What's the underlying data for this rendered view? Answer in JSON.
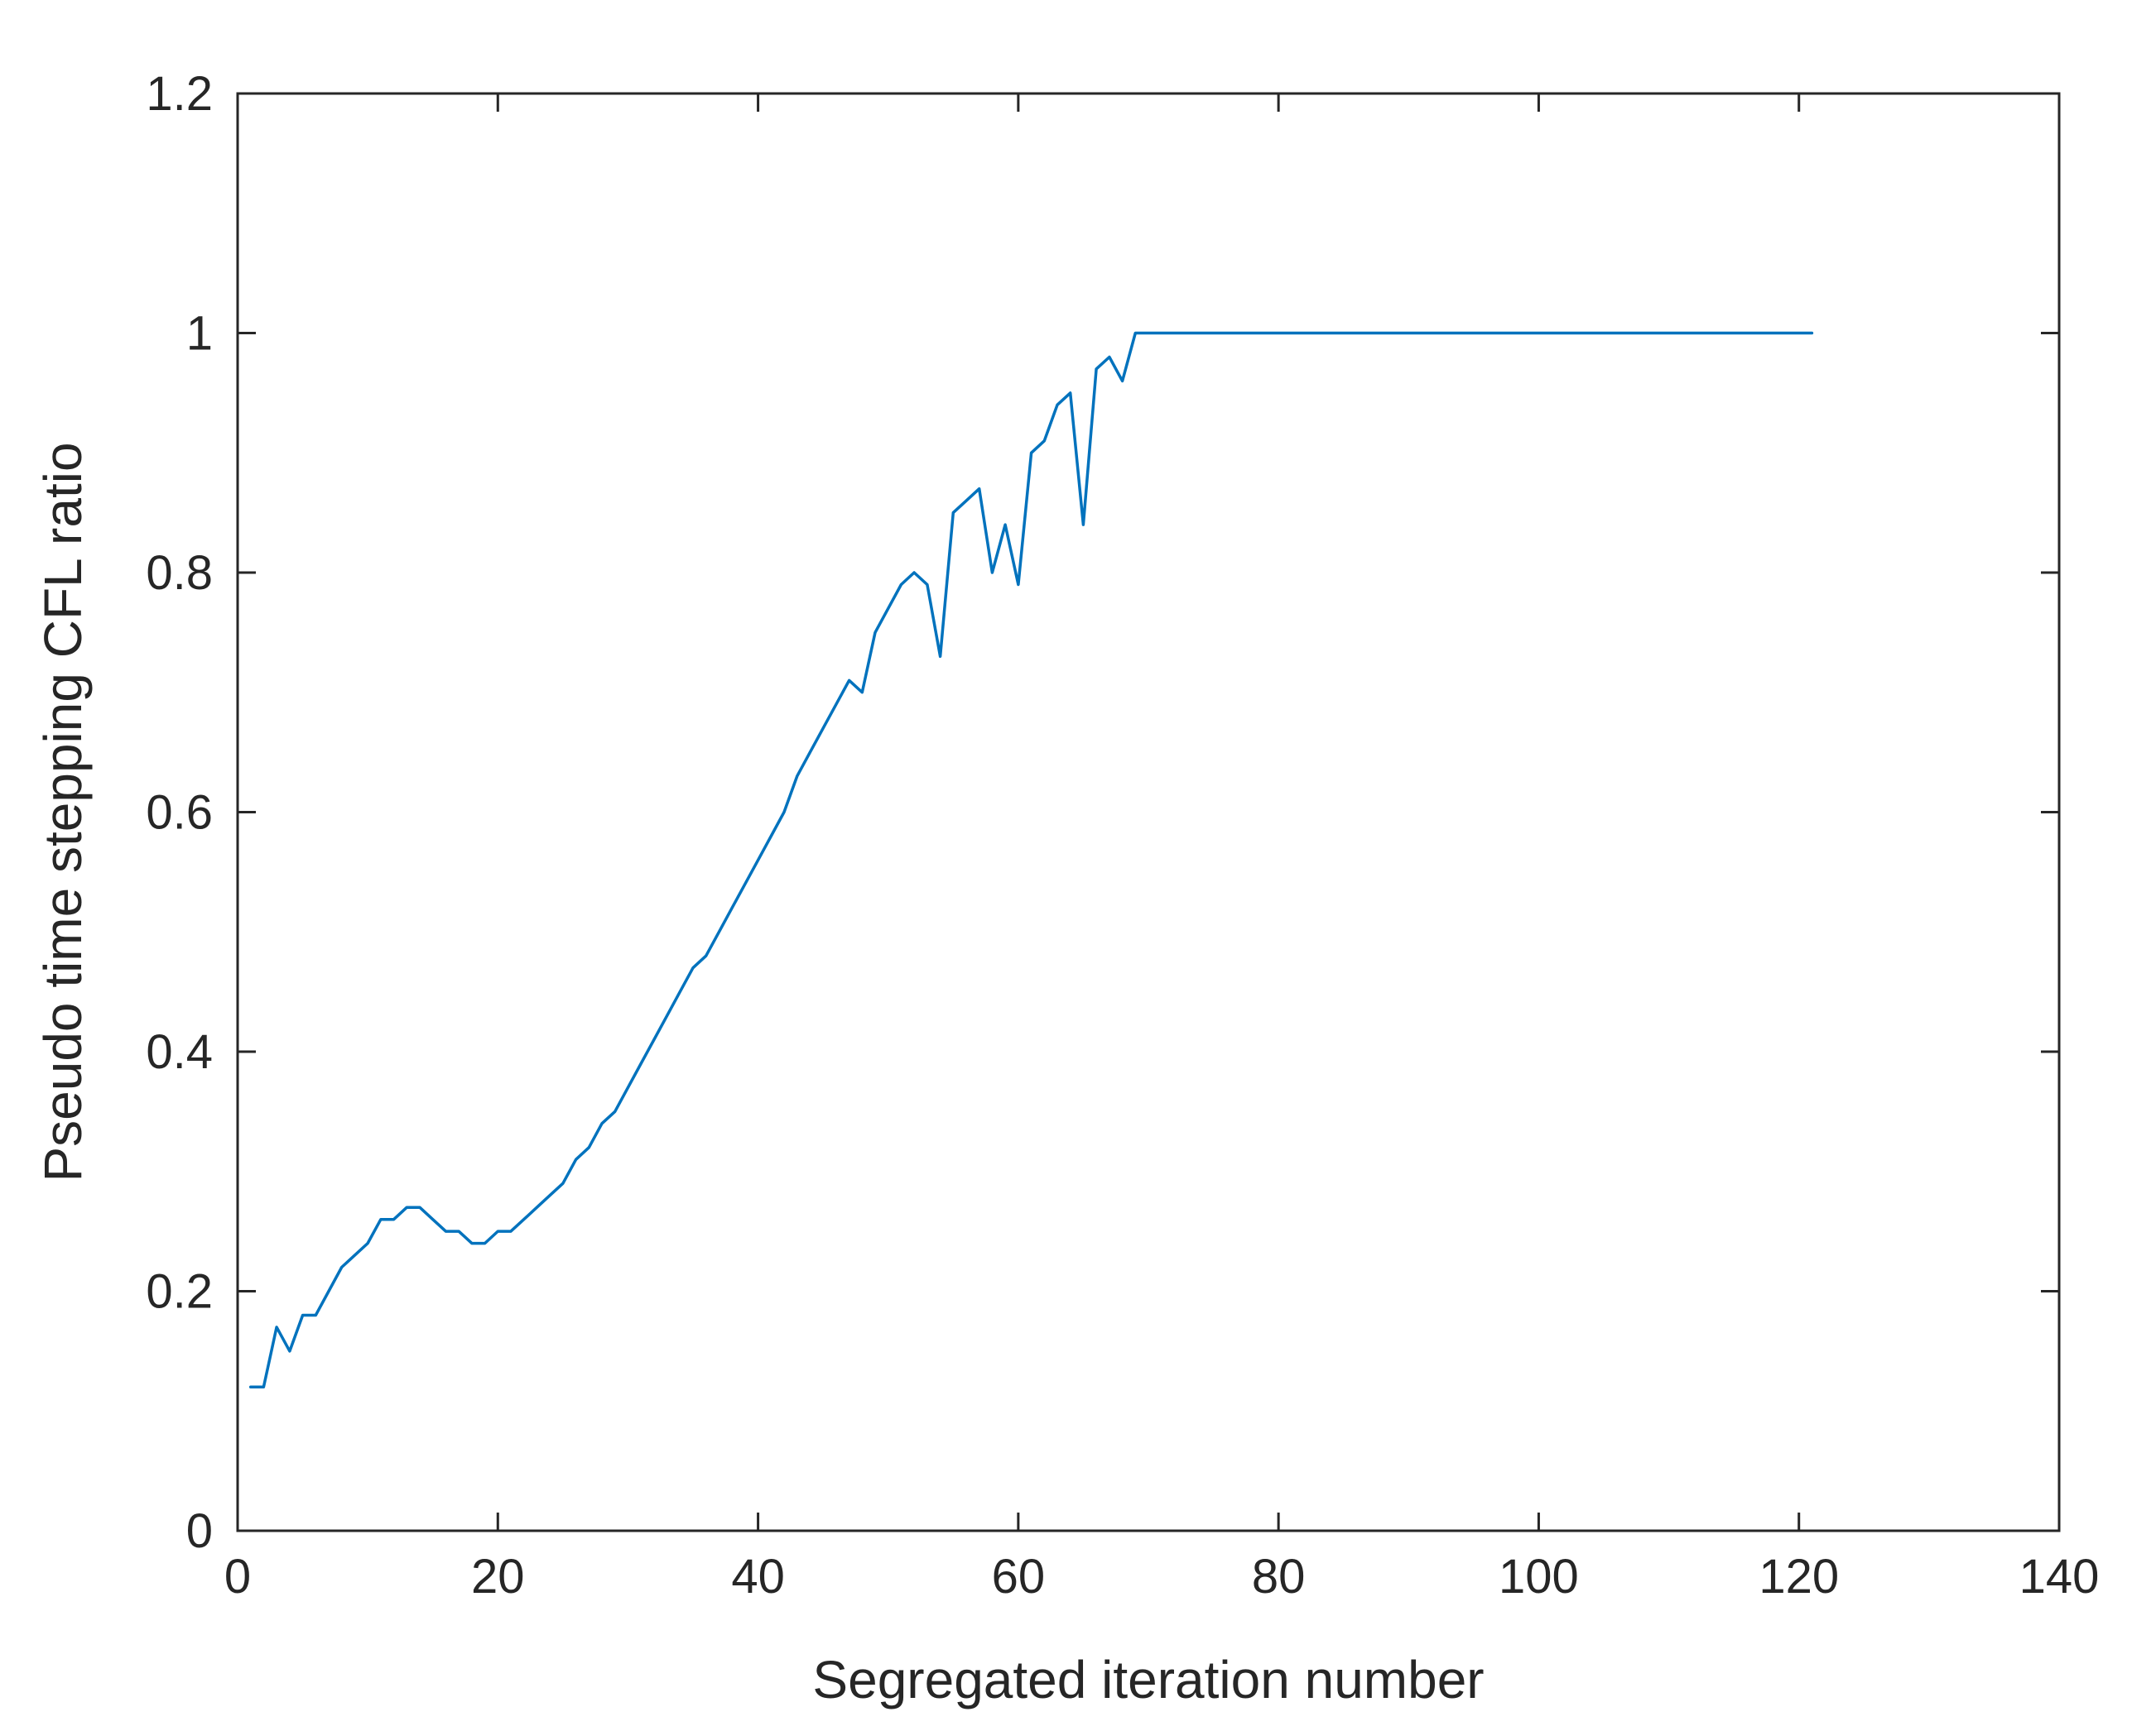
{
  "chart_data": {
    "type": "line",
    "title": "",
    "xlabel": "Segregated iteration number",
    "ylabel": "Pseudo time stepping CFL ratio",
    "xlim": [
      0,
      140
    ],
    "ylim": [
      0,
      1.2
    ],
    "xticks": [
      0,
      20,
      40,
      60,
      80,
      100,
      120,
      140
    ],
    "xtick_labels": [
      "0",
      "20",
      "40",
      "60",
      "80",
      "100",
      "120",
      "140"
    ],
    "yticks": [
      0,
      0.2,
      0.4,
      0.6,
      0.8,
      1.0,
      1.2
    ],
    "ytick_labels": [
      "0",
      "0.2",
      "0.4",
      "0.6",
      "0.8",
      "1",
      "1.2"
    ],
    "grid": false,
    "line_color": "#0072BD",
    "axis_color": "#262626",
    "series": [
      {
        "x": [
          1,
          2,
          3,
          4,
          5,
          6,
          7,
          8,
          9,
          10,
          11,
          12,
          13,
          14,
          15,
          16,
          17,
          18,
          19,
          20,
          21,
          22,
          23,
          24,
          25,
          26,
          27,
          28,
          29,
          30,
          31,
          32,
          33,
          34,
          35,
          36,
          37,
          38,
          39,
          40,
          41,
          42,
          43,
          44,
          45,
          46,
          47,
          48,
          49,
          50,
          51,
          52,
          53,
          54,
          55,
          56,
          57,
          58,
          59,
          60,
          61,
          62,
          63,
          64,
          65,
          66,
          67,
          68,
          69,
          121
        ],
        "y": [
          0.12,
          0.12,
          0.17,
          0.15,
          0.18,
          0.18,
          0.2,
          0.22,
          0.23,
          0.24,
          0.26,
          0.26,
          0.27,
          0.27,
          0.26,
          0.25,
          0.25,
          0.24,
          0.24,
          0.25,
          0.25,
          0.26,
          0.27,
          0.28,
          0.29,
          0.31,
          0.32,
          0.34,
          0.35,
          0.37,
          0.39,
          0.41,
          0.43,
          0.45,
          0.47,
          0.48,
          0.5,
          0.52,
          0.54,
          0.56,
          0.58,
          0.6,
          0.63,
          0.65,
          0.67,
          0.69,
          0.71,
          0.7,
          0.75,
          0.77,
          0.79,
          0.8,
          0.79,
          0.73,
          0.85,
          0.86,
          0.87,
          0.8,
          0.84,
          0.79,
          0.9,
          0.91,
          0.94,
          0.95,
          0.84,
          0.97,
          0.98,
          0.96,
          1.0,
          1.0
        ]
      }
    ]
  }
}
